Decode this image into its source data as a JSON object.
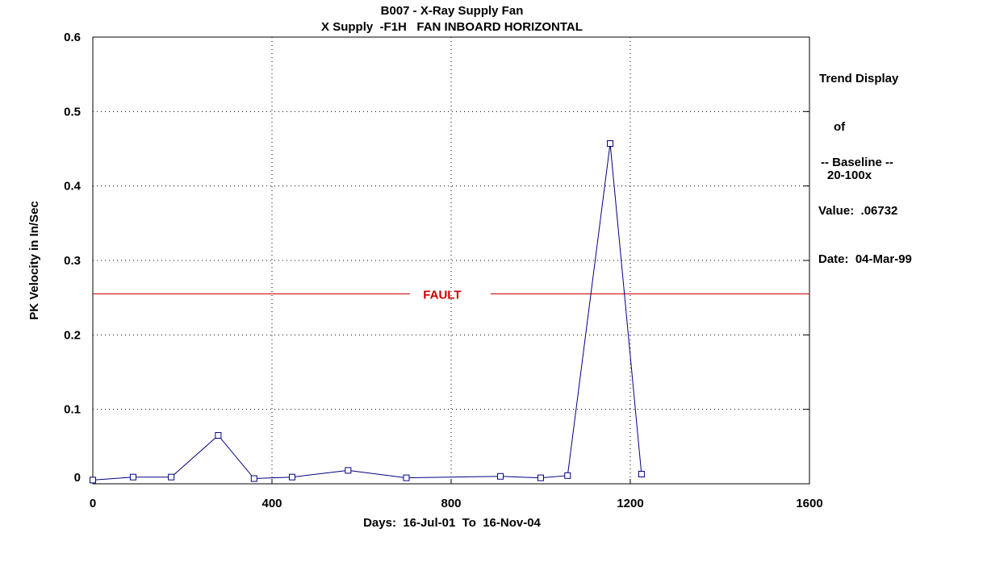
{
  "chart_data": {
    "type": "line",
    "title": "B007 - X-Ray Supply Fan",
    "subtitle": "X Supply  -F1H   FAN INBOARD HORIZONTAL",
    "xlabel": "Days:  16-Jul-01  To  16-Nov-04",
    "ylabel": "PK Velocity in In/Sec",
    "xlim": [
      0,
      1600
    ],
    "ylim": [
      0,
      0.6
    ],
    "x_ticks": [
      "0",
      "400",
      "800",
      "1200",
      "1600"
    ],
    "y_ticks": [
      "0",
      "0.1",
      "0.2",
      "0.3",
      "0.4",
      "0.5",
      "0.6"
    ],
    "grid": true,
    "series": [
      {
        "x": [
          0,
          90,
          175,
          280,
          360,
          445,
          570,
          700,
          910,
          1000,
          1060,
          1155,
          1225
        ],
        "values": [
          0.005,
          0.009,
          0.009,
          0.065,
          0.007,
          0.009,
          0.018,
          0.008,
          0.01,
          0.008,
          0.011,
          0.457,
          0.013
        ]
      }
    ],
    "threshold": {
      "label": "FAULT",
      "value": 0.255,
      "color": "#cc0000"
    },
    "line_color": "#000080"
  },
  "side_panel": {
    "trend_line1": "Trend Display",
    "trend_line2": "of",
    "trend_line3": "20-100x",
    "baseline_header": "-- Baseline --",
    "baseline_value": "Value:  .06732",
    "baseline_date": "Date:  04-Mar-99"
  }
}
